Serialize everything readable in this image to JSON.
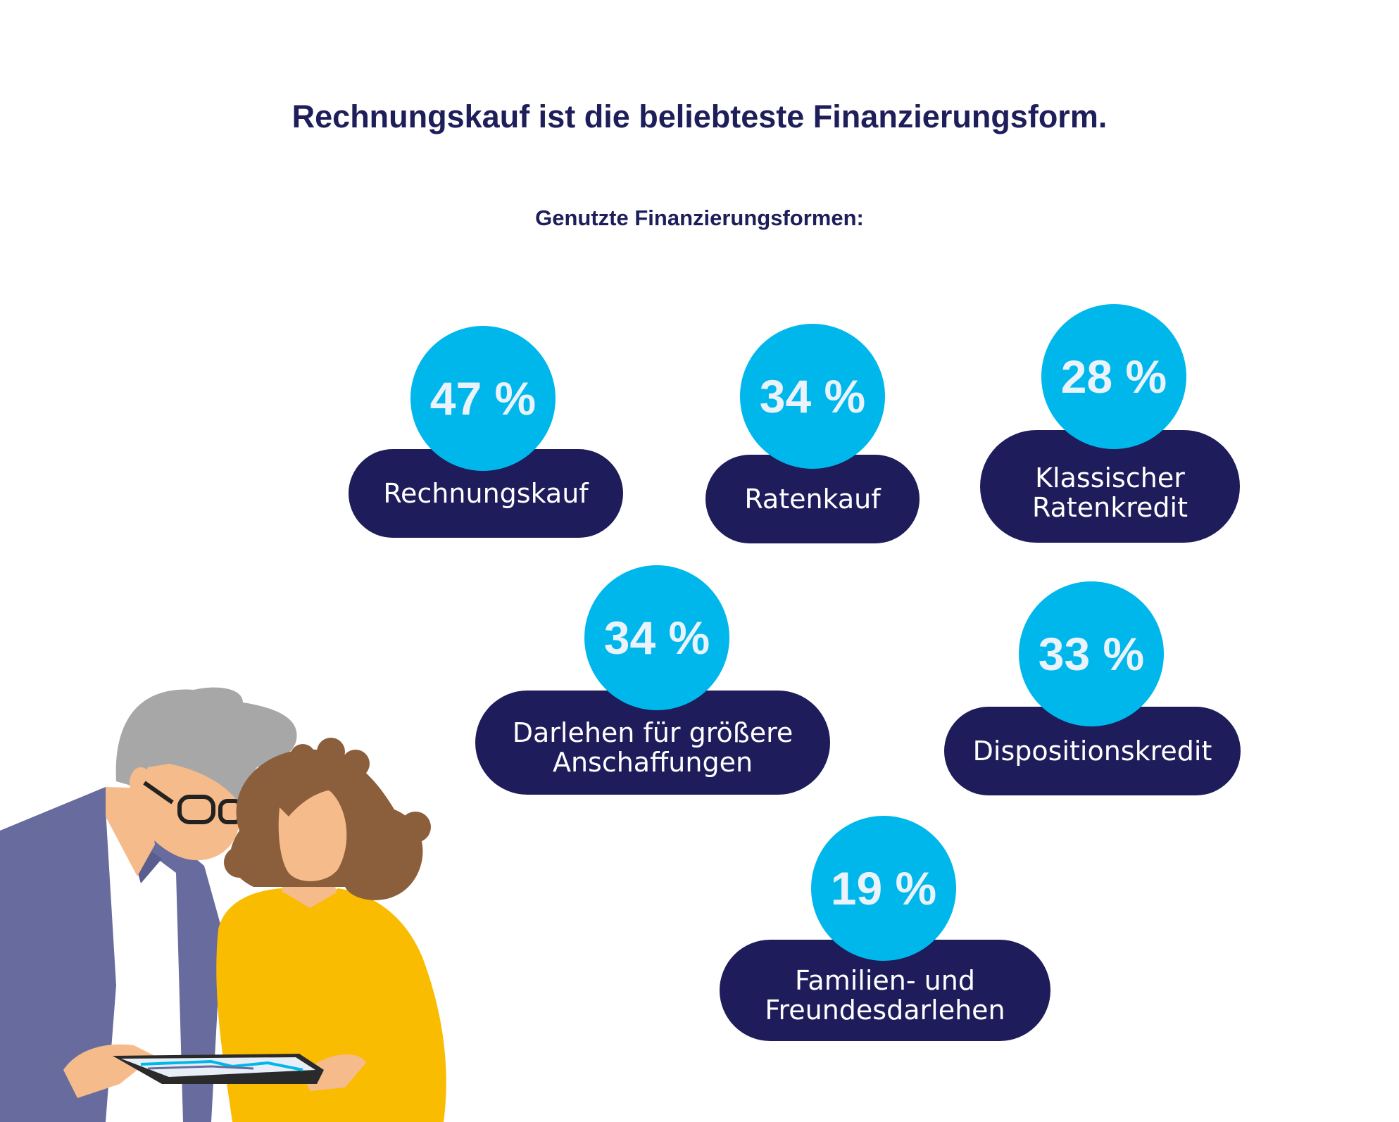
{
  "title": "Rechnungskauf ist die beliebteste Finanzierungsform.",
  "subtitle": "Genutzte Finanzierungsformen:",
  "items": [
    {
      "value": "47 %",
      "label": "Rechnungskauf"
    },
    {
      "value": "34 %",
      "label": "Ratenkauf"
    },
    {
      "value": "28 %",
      "label": "Klassischer\nRatenkredit"
    },
    {
      "value": "34 %",
      "label": "Darlehen für größere\nAnschaffungen"
    },
    {
      "value": "33 %",
      "label": "Dispositionskredit"
    },
    {
      "value": "19 %",
      "label": "Familien- und\nFreundesdarlehen"
    }
  ],
  "colors": {
    "navy": "#1e1c5a",
    "cyan": "#00b7eb",
    "jacket": "#676b9d",
    "sweater": "#f9bc00",
    "hair_grey": "#a7a7a7",
    "hair_brown": "#8b5e3c",
    "skin": "#f5bb8b"
  },
  "illustration": {
    "icon": "couple-with-tablet-illustration"
  }
}
